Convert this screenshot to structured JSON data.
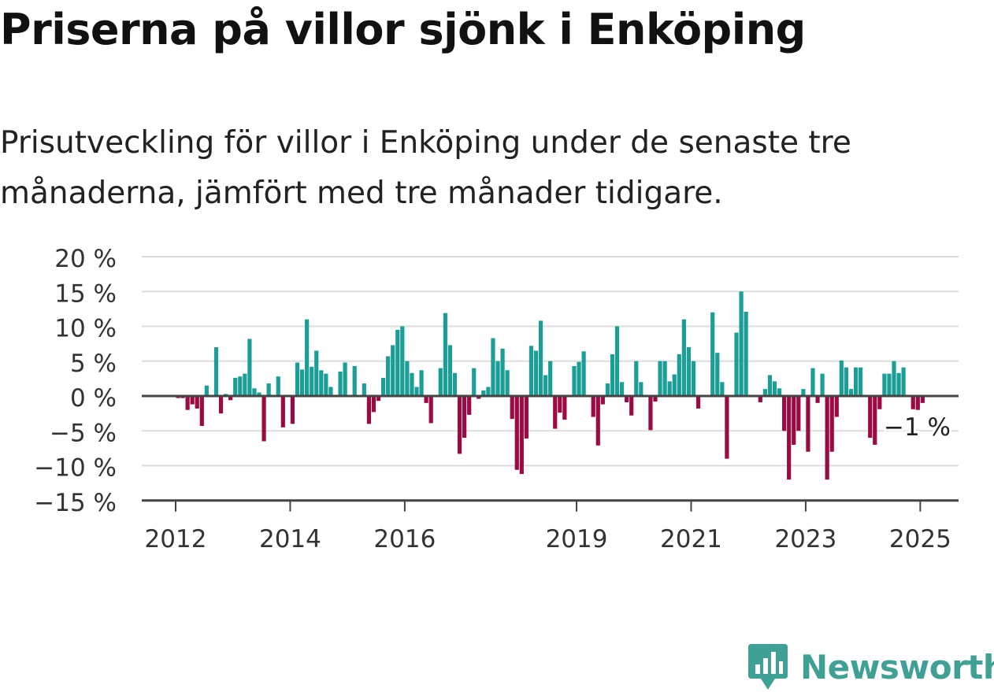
{
  "title": "Priserna på villor sjönk i Enköping",
  "subtitle": "Prisutveckling för villor i Enköping under de senaste tre månaderna, jämfört med tre månader tidigare.",
  "brand": "Newsworthy",
  "colors": {
    "positive": "#1a9e95",
    "negative": "#9b0a42",
    "grid": "#dddddd",
    "axis": "#444444",
    "text": "#333333"
  },
  "chart_data": {
    "type": "bar",
    "x_start": "2012-01",
    "interval": "monthly",
    "ylim": [
      -15,
      20
    ],
    "yticks": [
      -15,
      -10,
      -5,
      0,
      5,
      10,
      15,
      20
    ],
    "ytick_labels": [
      "−15 %",
      "−10 %",
      "−5 %",
      "0 %",
      "5 %",
      "10 %",
      "15 %",
      "20 %"
    ],
    "xtick_labels": [
      "2012",
      "2014",
      "2016",
      "2019",
      "2021",
      "2023",
      "2025"
    ],
    "xtick_dates": [
      "2012-01",
      "2014-01",
      "2016-01",
      "2019-01",
      "2021-01",
      "2023-01",
      "2025-01"
    ],
    "last_value_label": "−1 %",
    "values": [
      -0.3,
      -0.3,
      -2,
      -1.2,
      -1.8,
      -4.3,
      1.5,
      null,
      7,
      -2.5,
      0.3,
      -0.6,
      2.6,
      2.8,
      3.2,
      8.2,
      1.1,
      0.5,
      -6.5,
      1.8,
      null,
      2.8,
      -4.5,
      null,
      -4,
      4.8,
      3.8,
      11,
      4.2,
      6.5,
      3.7,
      3.2,
      1.3,
      null,
      3.5,
      4.8,
      null,
      4.3,
      null,
      1.8,
      -4,
      -2.3,
      -0.7,
      2.6,
      5.7,
      7.3,
      9.5,
      10,
      5,
      3.3,
      1.3,
      3.7,
      -1,
      -3.9,
      null,
      4,
      11.9,
      7.3,
      3.3,
      -8.3,
      -6,
      -2.7,
      4,
      -0.4,
      0.8,
      1.3,
      8.3,
      5,
      6.8,
      3.7,
      -3.3,
      -10.6,
      -11.2,
      -6.1,
      7.2,
      6.5,
      10.8,
      3,
      5,
      -4.7,
      -2.4,
      -3.4,
      null,
      4.3,
      4.9,
      6.4,
      null,
      -3,
      -7.1,
      -1.2,
      1.8,
      6,
      10,
      2,
      -0.9,
      -2.8,
      5,
      2,
      null,
      -4.9,
      -0.8,
      5,
      5,
      2.1,
      3.1,
      6,
      11,
      7,
      5,
      -1.8,
      null,
      null,
      12,
      6.2,
      2,
      -9,
      null,
      9.1,
      15,
      12.1,
      null,
      null,
      -0.9,
      1,
      3,
      2.1,
      1.1,
      -5,
      -12,
      -7,
      -5,
      1,
      -8,
      4,
      -1,
      3.2,
      -12,
      -8,
      -3,
      5.1,
      4.1,
      1,
      4.1,
      4.1,
      null,
      -6,
      -7,
      -1.9,
      3.2,
      3.2,
      5,
      3.3,
      4.1,
      null,
      -1.9,
      -2,
      -1
    ]
  }
}
